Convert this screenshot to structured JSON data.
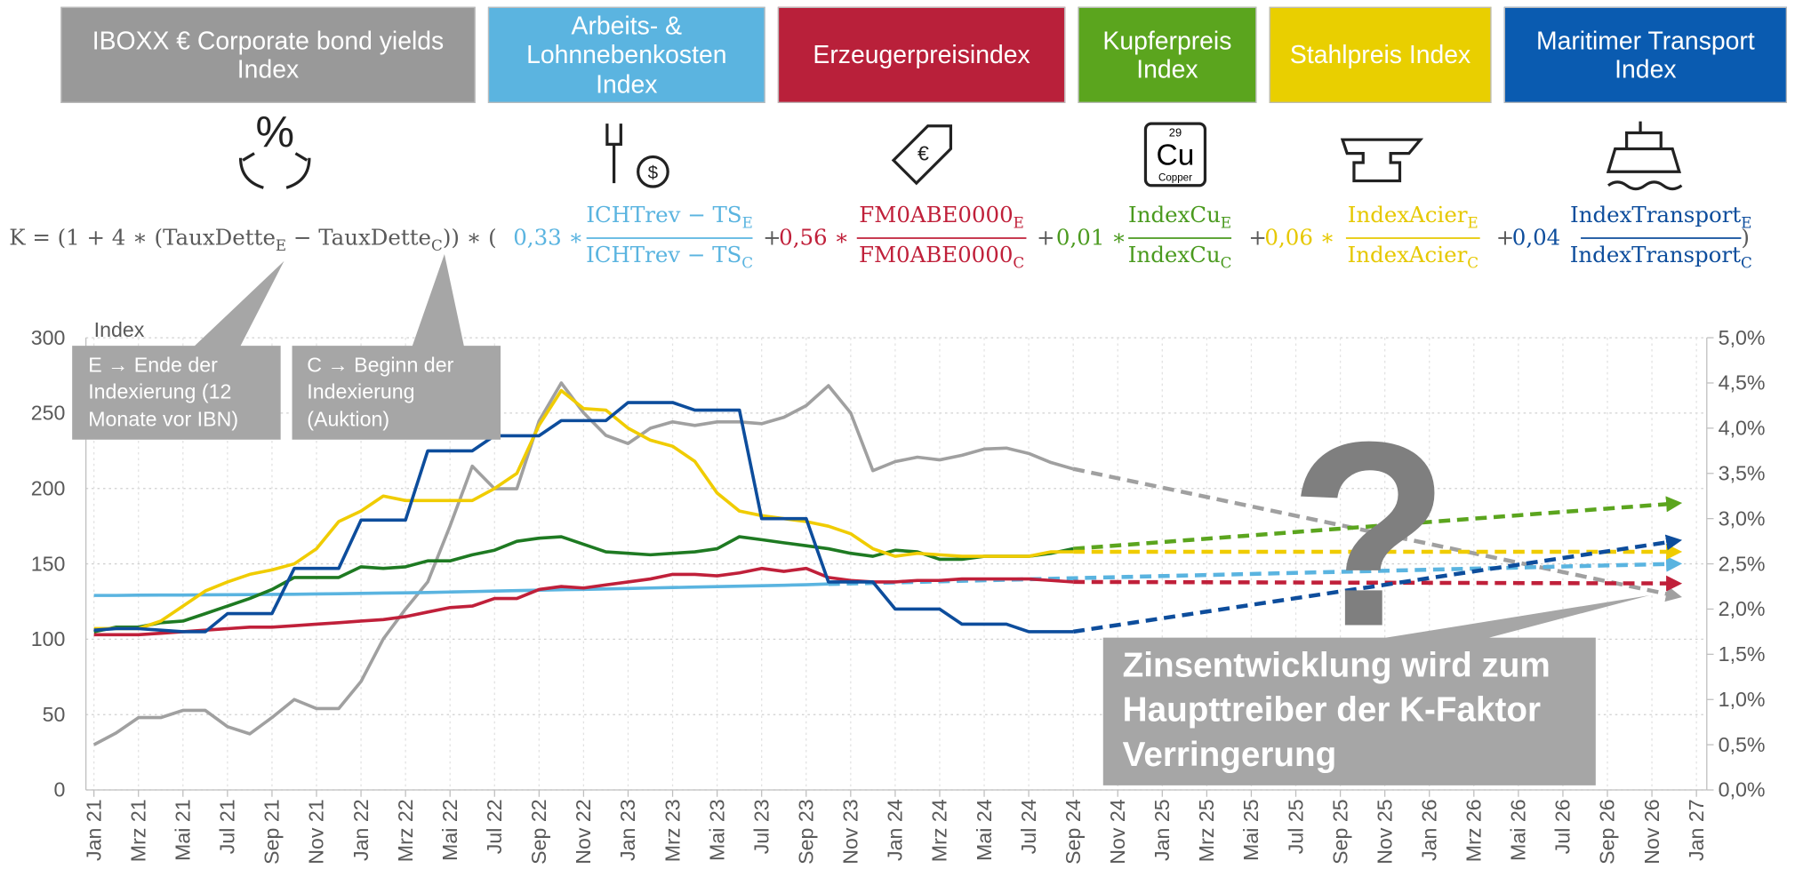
{
  "chart_data": {
    "type": "line",
    "y_axis_label": "Index",
    "categories": [
      "Jan 21",
      null,
      "Mrz 21",
      null,
      "Mai 21",
      null,
      "Jul 21",
      null,
      "Sep 21",
      null,
      "Nov 21",
      null,
      "Jan 22",
      null,
      "Mrz 22",
      null,
      "Mai 22",
      null,
      "Jul 22",
      null,
      "Sep 22",
      null,
      "Nov 22",
      null,
      "Jan 23",
      null,
      "Mrz 23",
      null,
      "Mai 23",
      null,
      "Jul 23",
      null,
      "Sep 23",
      null,
      "Nov 23",
      null,
      "Jan 24",
      null,
      "Mrz 24",
      null,
      "Mai 24",
      null,
      "Jul 24",
      null,
      "Sep 24",
      null,
      "Nov 24",
      null,
      "Jan 25",
      null,
      "Mrz 25",
      null,
      "Mai 25",
      null,
      "Jul 25",
      null,
      "Sep 25",
      null,
      "Nov 25",
      null,
      "Jan 26",
      null,
      "Mrz 26",
      null,
      "Mai 26",
      null,
      "Jul 26",
      null,
      "Sep 26",
      null,
      "Nov 26",
      null,
      "Jan 27"
    ],
    "ylim": [
      0,
      300
    ],
    "yticks": [
      0,
      50,
      100,
      150,
      200,
      250,
      300
    ],
    "y2lim": [
      0,
      5
    ],
    "y2ticks": [
      {
        "value": 0,
        "label": "0,0%"
      },
      {
        "value": 0.5,
        "label": "0,5%"
      },
      {
        "value": 1,
        "label": "1,0%"
      },
      {
        "value": 1.5,
        "label": "1,5%"
      },
      {
        "value": 2,
        "label": "2,0%"
      },
      {
        "value": 2.5,
        "label": "2,5%"
      },
      {
        "value": 3,
        "label": "3,0%"
      },
      {
        "value": 3.5,
        "label": "3,5%"
      },
      {
        "value": 4,
        "label": "4,0%"
      },
      {
        "value": 4.5,
        "label": "4,5%"
      },
      {
        "value": 5,
        "label": "5,0%"
      }
    ],
    "grid": true,
    "series": [
      {
        "name": "IBOXX € Corporate bond yields Index",
        "color": "#a0a0a0",
        "box_color": "#999999",
        "axis": "y2",
        "values": [
          0.5,
          0.63,
          0.8,
          0.8,
          0.88,
          0.88,
          0.7,
          0.62,
          0.8,
          1.0,
          0.9,
          0.9,
          1.2,
          1.67,
          2.0,
          2.3,
          2.92,
          3.58,
          3.33,
          3.33,
          4.08,
          4.5,
          4.17,
          3.92,
          3.83,
          4.0,
          4.07,
          4.03,
          4.07,
          4.07,
          4.05,
          4.12,
          4.25,
          4.47,
          4.17,
          3.53,
          3.63,
          3.68,
          3.65,
          3.7,
          3.77,
          3.78,
          3.72,
          3.62,
          3.55,
          null,
          null,
          null,
          null,
          null,
          null,
          null,
          null,
          null,
          null,
          null,
          null,
          null,
          null,
          null,
          null,
          null,
          null,
          null,
          null,
          null,
          null,
          null,
          null,
          null,
          null,
          null,
          null
        ],
        "forecast_end": 2.15
      },
      {
        "name": "Arbeits- & Lohnnebenkosten Index",
        "color": "#5ab4e0",
        "box_color": "#5bb4e0",
        "values": [
          129,
          129,
          129.2,
          129.3,
          129.3,
          129.4,
          129.5,
          129.6,
          129.7,
          129.8,
          130,
          130.2,
          130.4,
          130.6,
          130.8,
          131,
          131.3,
          131.6,
          131.9,
          132.2,
          132.5,
          132.8,
          133.1,
          133.4,
          133.7,
          134,
          134.3,
          134.6,
          134.9,
          135.2,
          135.5,
          135.8,
          136.2,
          136.6,
          null,
          null,
          null,
          null,
          null,
          null,
          null,
          null,
          null,
          null,
          null,
          null,
          null,
          null,
          null,
          null,
          null,
          null,
          null,
          null,
          null,
          null,
          null,
          null,
          null,
          null,
          null,
          null,
          null,
          null,
          null,
          null,
          null,
          null,
          null,
          null,
          null,
          null,
          null
        ],
        "forecast_end": 150
      },
      {
        "name": "Erzeugerpreisindex",
        "color": "#c0203a",
        "box_color": "#b9203a",
        "values": [
          103,
          103,
          103,
          104,
          105,
          106,
          107,
          108,
          108,
          109,
          110,
          111,
          112,
          113,
          115,
          118,
          121,
          122,
          127,
          127,
          133,
          135,
          134,
          136,
          138,
          140,
          143,
          143,
          142,
          144,
          147,
          145,
          147,
          141,
          139,
          138,
          138,
          139,
          139,
          140,
          140,
          140,
          140,
          139,
          138,
          null,
          null,
          null,
          null,
          null,
          null,
          null,
          null,
          null,
          null,
          null,
          null,
          null,
          null,
          null,
          null,
          null,
          null,
          null,
          null,
          null,
          null,
          null,
          null,
          null,
          null,
          null,
          null
        ],
        "forecast_end": 137
      },
      {
        "name": "Kupferpreis Index",
        "color": "#1e7a22",
        "box_color": "#5ba51e",
        "values": [
          105,
          108,
          108,
          111,
          112,
          117,
          122,
          127,
          133,
          141,
          141,
          141,
          148,
          147,
          148,
          152,
          152,
          156,
          159,
          165,
          167,
          168,
          163,
          158,
          157,
          156,
          157,
          158,
          160,
          168,
          166,
          164,
          162,
          160,
          157,
          155,
          159,
          158,
          153,
          153,
          155,
          155,
          155,
          157,
          160,
          null,
          null,
          null,
          null,
          null,
          null,
          null,
          null,
          null,
          null,
          null,
          null,
          null,
          null,
          null,
          null,
          null,
          null,
          null,
          null,
          null,
          null,
          null,
          null,
          null,
          null,
          null,
          null
        ],
        "forecast_end": 190,
        "forecast_color": "#5ba51e"
      },
      {
        "name": "Stahlpreis Index",
        "color": "#f0cc00",
        "box_color": "#e9cf00",
        "values": [
          107,
          107,
          107,
          112,
          122,
          132,
          138,
          143,
          146,
          150,
          160,
          178,
          185,
          195,
          192,
          192,
          192,
          192,
          200,
          210,
          242,
          265,
          253,
          252,
          240,
          232,
          228,
          218,
          197,
          185,
          182,
          180,
          178,
          175,
          170,
          160,
          155,
          157,
          156,
          155,
          155,
          155,
          155,
          158,
          158,
          null,
          null,
          null,
          null,
          null,
          null,
          null,
          null,
          null,
          null,
          null,
          null,
          null,
          null,
          null,
          null,
          null,
          null,
          null,
          null,
          null,
          null,
          null,
          null,
          null,
          null,
          null,
          null
        ],
        "forecast_end": 158
      },
      {
        "name": "Maritimer Transport Index",
        "color": "#0d4d9c",
        "box_color": "#0a5bb0",
        "values": [
          106,
          107,
          107,
          106,
          105,
          105,
          117,
          117,
          117,
          147,
          147,
          147,
          179,
          179,
          179,
          225,
          225,
          225,
          235,
          235,
          235,
          245,
          245,
          245,
          257,
          257,
          257,
          252,
          252,
          252,
          180,
          180,
          180,
          138,
          138,
          138,
          120,
          120,
          120,
          110,
          110,
          110,
          105,
          105,
          105,
          null,
          null,
          null,
          null,
          null,
          null,
          null,
          null,
          null,
          null,
          null,
          null,
          null,
          null,
          null,
          null,
          null,
          null,
          null,
          null,
          null,
          null,
          null,
          null,
          null,
          null,
          null,
          null
        ],
        "forecast_end": 165
      }
    ],
    "icons": {
      "percent": "%",
      "cu_number": "29",
      "cu_symbol": "Cu",
      "cu_name": "Copper"
    },
    "formula": {
      "head": [
        "K = (1 + 4 ∗ (TauxDette",
        "E",
        " − TauxDette",
        "C",
        ")) ∗ ("
      ],
      "terms": [
        {
          "op": null,
          "coef": "0,33 ∗",
          "num": [
            "ICHTrev − TS",
            "E"
          ],
          "den": [
            "ICHTrev − TS",
            "C"
          ],
          "color": "#5ab4e0"
        },
        {
          "op": "+",
          "coef": "0,56 ∗",
          "num": [
            "FM0ABE0000",
            "E"
          ],
          "den": [
            "FM0ABE0000",
            "C"
          ],
          "color": "#c0203a"
        },
        {
          "op": "+",
          "coef": "0,01 ∗",
          "num": [
            "IndexCu",
            "E"
          ],
          "den": [
            "IndexCu",
            "C"
          ],
          "color": "#4a9a1e"
        },
        {
          "op": "+",
          "coef": "0,06 ∗",
          "num": [
            "IndexAcier",
            "E"
          ],
          "den": [
            "IndexAcier",
            "C"
          ],
          "color": "#e6c800"
        },
        {
          "op": "+",
          "coef": "0,04",
          "num": [
            "IndexTransport",
            "E"
          ],
          "den": [
            "IndexTransport",
            "C"
          ],
          "color": "#0d4d9c"
        }
      ],
      "tail": ")"
    },
    "annotations": {
      "callout_e": "E → Ende der Indexierung (12 Monate vor IBN)",
      "callout_c": "C → Beginn der Indexierung (Auktion)",
      "question": "?",
      "conclusion": "Zinsentwicklung wird zum Haupttreiber der K-Faktor Verringerung"
    }
  }
}
